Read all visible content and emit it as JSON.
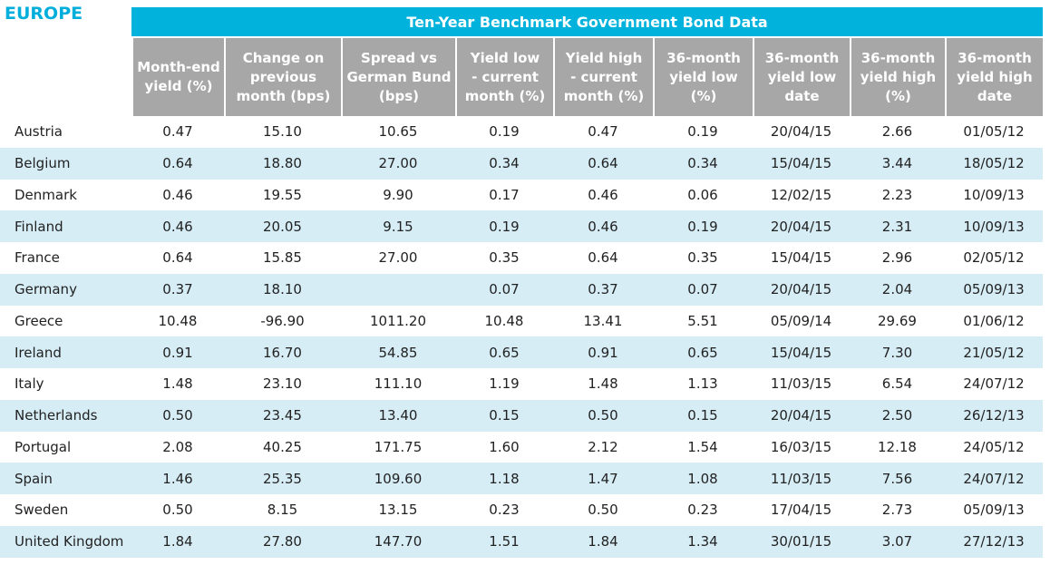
{
  "header": {
    "region": "EUROPE",
    "title": "Ten-Year Benchmark Government Bond Data"
  },
  "table": {
    "columns": [
      "Month-end\nyield (%)",
      "Change on\nprevious\nmonth (bps)",
      "Spread vs\nGerman Bund\n(bps)",
      "Yield low\n- current\nmonth (%)",
      "Yield high\n- current\nmonth (%)",
      "36-month\nyield low\n(%)",
      "36-month\nyield low\ndate",
      "36-month\nyield high\n(%)",
      "36-month\nyield high\ndate"
    ],
    "rows": [
      [
        "Austria",
        "0.47",
        "15.10",
        "10.65",
        "0.19",
        "0.47",
        "0.19",
        "20/04/15",
        "2.66",
        "01/05/12"
      ],
      [
        "Belgium",
        "0.64",
        "18.80",
        "27.00",
        "0.34",
        "0.64",
        "0.34",
        "15/04/15",
        "3.44",
        "18/05/12"
      ],
      [
        "Denmark",
        "0.46",
        "19.55",
        "9.90",
        "0.17",
        "0.46",
        "0.06",
        "12/02/15",
        "2.23",
        "10/09/13"
      ],
      [
        "Finland",
        "0.46",
        "20.05",
        "9.15",
        "0.19",
        "0.46",
        "0.19",
        "20/04/15",
        "2.31",
        "10/09/13"
      ],
      [
        "France",
        "0.64",
        "15.85",
        "27.00",
        "0.35",
        "0.64",
        "0.35",
        "15/04/15",
        "2.96",
        "02/05/12"
      ],
      [
        "Germany",
        "0.37",
        "18.10",
        null,
        "0.07",
        "0.37",
        "0.07",
        "20/04/15",
        "2.04",
        "05/09/13"
      ],
      [
        "Greece",
        "10.48",
        "-96.90",
        "1011.20",
        "10.48",
        "13.41",
        "5.51",
        "05/09/14",
        "29.69",
        "01/06/12"
      ],
      [
        "Ireland",
        "0.91",
        "16.70",
        "54.85",
        "0.65",
        "0.91",
        "0.65",
        "15/04/15",
        "7.30",
        "21/05/12"
      ],
      [
        "Italy",
        "1.48",
        "23.10",
        "111.10",
        "1.19",
        "1.48",
        "1.13",
        "11/03/15",
        "6.54",
        "24/07/12"
      ],
      [
        "Netherlands",
        "0.50",
        "23.45",
        "13.40",
        "0.15",
        "0.50",
        "0.15",
        "20/04/15",
        "2.50",
        "26/12/13"
      ],
      [
        "Portugal",
        "2.08",
        "40.25",
        "171.75",
        "1.60",
        "2.12",
        "1.54",
        "16/03/15",
        "12.18",
        "24/05/12"
      ],
      [
        "Spain",
        "1.46",
        "25.35",
        "109.60",
        "1.18",
        "1.47",
        "1.08",
        "11/03/15",
        "7.56",
        "24/07/12"
      ],
      [
        "Sweden",
        "0.50",
        "8.15",
        "13.15",
        "0.23",
        "0.50",
        "0.23",
        "17/04/15",
        "2.73",
        "05/09/13"
      ],
      [
        "United Kingdom",
        "1.84",
        "27.80",
        "147.70",
        "1.51",
        "1.84",
        "1.34",
        "30/01/15",
        "3.07",
        "27/12/13"
      ]
    ]
  }
}
